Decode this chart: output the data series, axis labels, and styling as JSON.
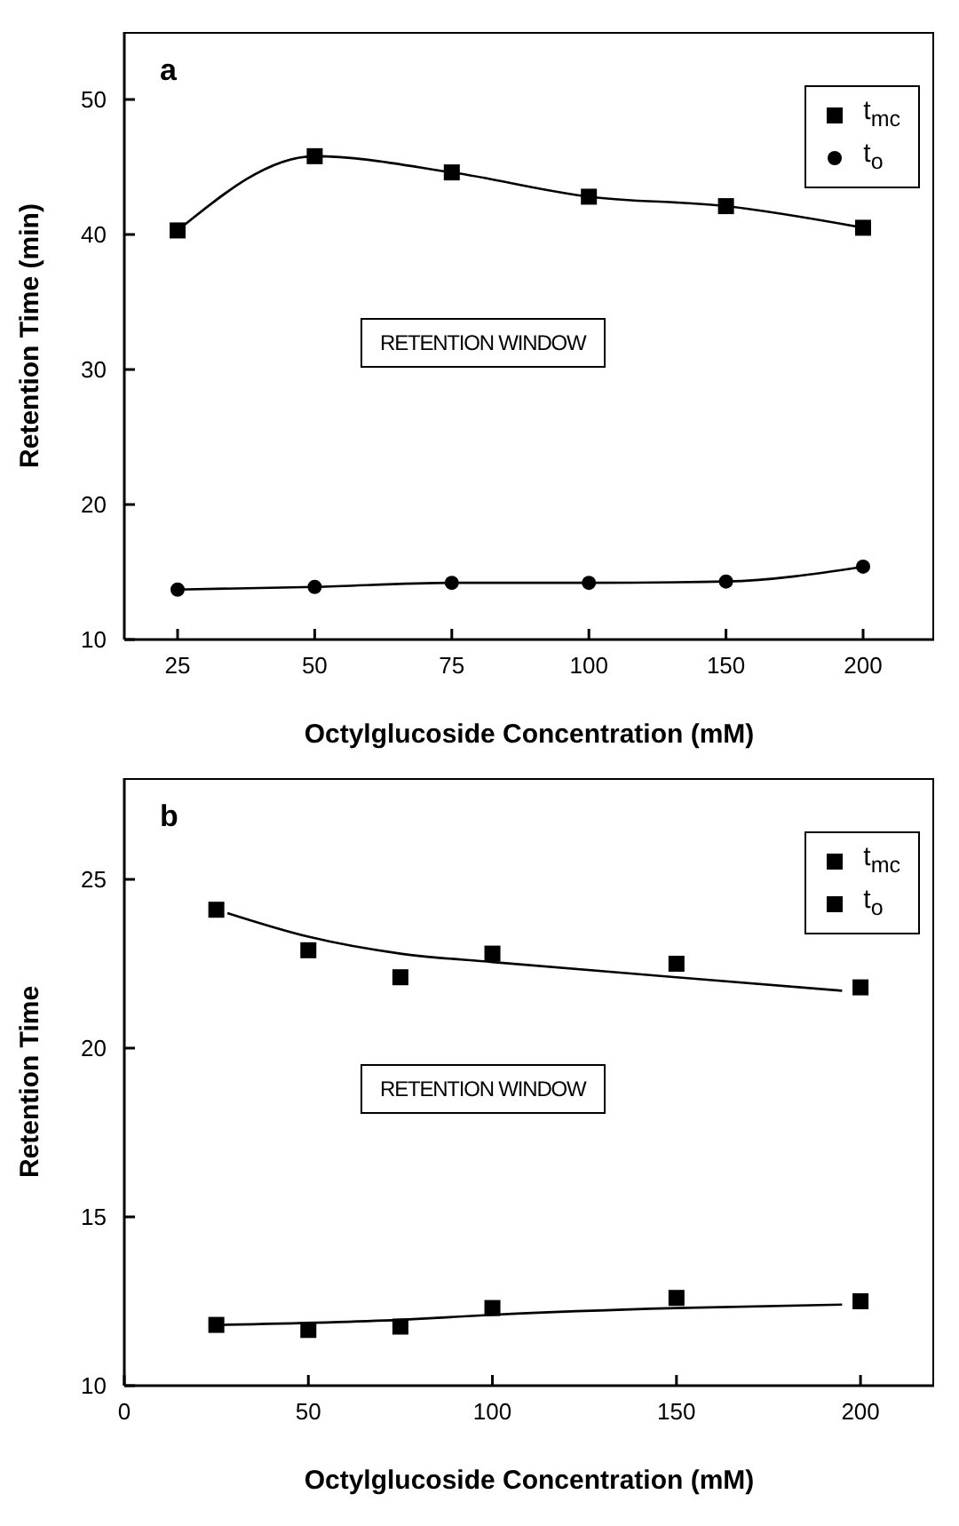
{
  "chart_data": [
    {
      "type": "line",
      "title": "a",
      "xlabel": "Octylglucoside  Concentration  (mM)",
      "ylabel": "Retention  Time  (min)",
      "categories": [
        "25",
        "50",
        "75",
        "100",
        "150",
        "200"
      ],
      "series": [
        {
          "name": "t$_{mc}$",
          "color": "#000000",
          "marker": "square",
          "values": [
            40.3,
            45.8,
            44.6,
            42.8,
            42.1,
            40.5
          ]
        },
        {
          "name": "t$_{o}$",
          "color": "#000000",
          "marker": "circle",
          "values": [
            13.7,
            13.9,
            14.2,
            14.2,
            14.3,
            15.4
          ]
        }
      ],
      "ylim": [
        10,
        55
      ],
      "yticks": [
        10,
        20,
        30,
        40,
        50
      ],
      "grid": false,
      "legend": "top right",
      "line_style": "solid",
      "annotations": [
        "RETENTION WINDOW"
      ]
    },
    {
      "type": "scatter",
      "title": "b",
      "xlabel": "Octylglucoside  Concentration  (mM)",
      "ylabel": "Retention  Time",
      "x": [
        25,
        50,
        75,
        100,
        150,
        200
      ],
      "series": [
        {
          "name": "t$_{mc}$",
          "color": "#000000",
          "marker": "square",
          "values": [
            24.1,
            22.9,
            22.1,
            22.8,
            22.5,
            21.8
          ]
        },
        {
          "name": "t$_{o}$",
          "color": "#000000",
          "marker": "square",
          "values": [
            11.8,
            11.65,
            11.75,
            12.3,
            12.6,
            12.5
          ]
        },
        {
          "type": "line",
          "color": "#000000",
          "marker": "none",
          "x": [
            28,
            50,
            75,
            100,
            150,
            195
          ],
          "values": [
            24.0,
            23.3,
            22.8,
            22.55,
            22.1,
            21.7
          ]
        },
        {
          "type": "line",
          "color": "#000000",
          "marker": "none",
          "x": [
            25,
            75,
            100,
            150,
            195
          ],
          "values": [
            11.8,
            11.95,
            12.1,
            12.3,
            12.4
          ]
        }
      ],
      "xlim": [
        0,
        220
      ],
      "xticks": [
        0,
        50,
        100,
        150,
        200
      ],
      "ylim": [
        10,
        28
      ],
      "yticks": [
        10,
        15,
        20,
        25
      ],
      "grid": false,
      "legend": "top right",
      "line_style": "solid",
      "annotations": [
        "RETENTION WINDOW"
      ]
    }
  ]
}
